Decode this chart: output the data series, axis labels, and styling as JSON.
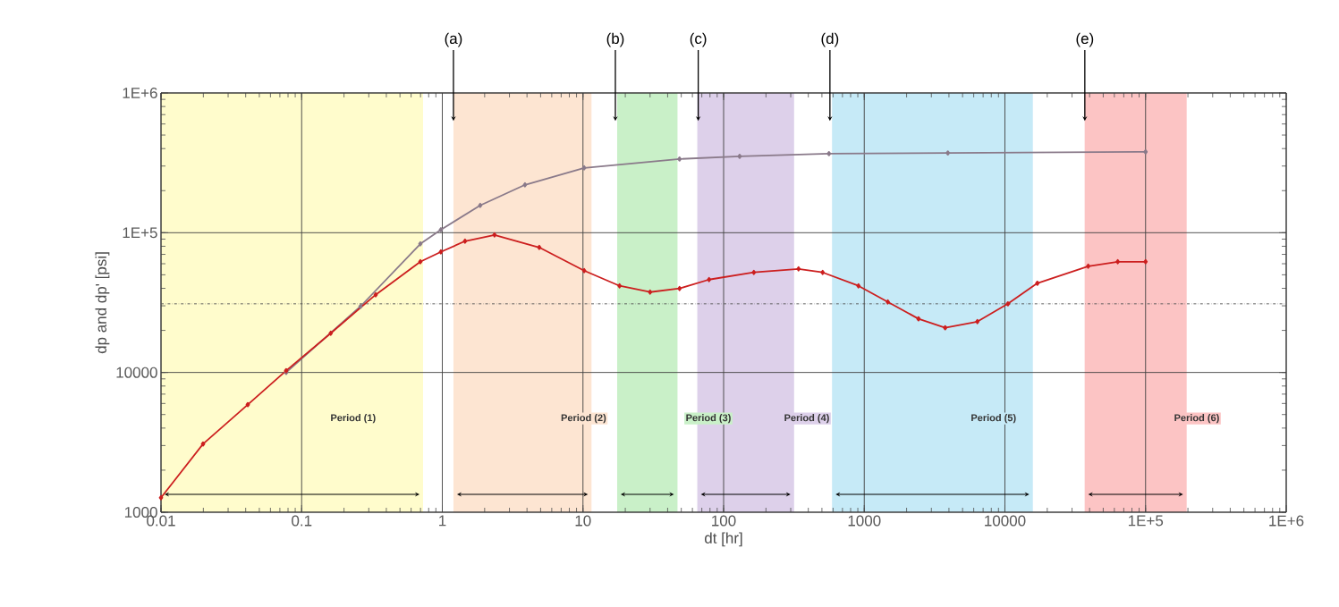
{
  "chart_data": {
    "type": "line",
    "xlabel": "dt [hr]",
    "ylabel": "dp and dp' [psi]",
    "log": "xy",
    "grid": true,
    "marker": "diamond",
    "line_style": "solid",
    "xlim": [
      0.01,
      1000000
    ],
    "ylim": [
      1000,
      1000000
    ],
    "xticks": [
      0.01,
      0.1,
      1,
      10,
      100,
      1000,
      10000,
      {
        "value": 100000,
        "label": "1E+5"
      },
      {
        "value": 1000000,
        "label": "1E+6"
      }
    ],
    "yticks": [
      1000,
      10000,
      {
        "value": 100000,
        "label": "1E+5"
      },
      {
        "value": 1000000,
        "label": "1E+6"
      }
    ],
    "series": [
      {
        "color": "#8a7a8a",
        "x": [
          0.0776,
          0.262,
          0.698,
          0.977,
          1.86,
          3.87,
          10.2,
          48.6,
          130,
          561,
          3930,
          100000
        ],
        "values": [
          10000,
          29700,
          83200,
          105000,
          157000,
          220000,
          291000,
          337000,
          352000,
          368000,
          372000,
          379000
        ]
      },
      {
        "color": "#cc1f1f",
        "x": [
          0.01,
          0.0199,
          0.0414,
          0.0776,
          0.161,
          0.336,
          0.698,
          0.977,
          1.45,
          2.35,
          4.89,
          10.2,
          18.2,
          30,
          48.6,
          78.8,
          164,
          341,
          506,
          909,
          1470,
          2430,
          3760,
          6370,
          10500,
          17000,
          39100,
          63400,
          100000
        ],
        "values": [
          1270,
          3080,
          5890,
          10300,
          19100,
          36000,
          62000,
          73000,
          87000,
          96400,
          78500,
          53500,
          41700,
          37600,
          39900,
          46200,
          52000,
          55100,
          52000,
          41700,
          32000,
          24200,
          20900,
          23100,
          31000,
          43500,
          57600,
          62000,
          62000
        ]
      }
    ],
    "ref_lines": [
      {
        "axis": "y",
        "value": 31000,
        "color": "#555555",
        "line_style": "dashed"
      }
    ],
    "bands": [
      {
        "axis": "x",
        "from": 0.01,
        "to": 0.73,
        "label": "Period (1)",
        "color": "#fffccc"
      },
      {
        "axis": "x",
        "from": 1.2,
        "to": 11.5,
        "label": "Period (2)",
        "color": "#fde5d2"
      },
      {
        "axis": "x",
        "from": 17.5,
        "to": 47,
        "label": "Period (3)",
        "color": "#c9f0c8"
      },
      {
        "axis": "x",
        "from": 65,
        "to": 317,
        "label": "Period (4)",
        "color": "#ddd0ea"
      },
      {
        "axis": "x",
        "from": 590,
        "to": 15800,
        "label": "Period (5)",
        "color": "#c6eaf7"
      },
      {
        "axis": "x",
        "from": 36900,
        "to": 196000,
        "label": "Period (6)",
        "color": "#fcc4c4"
      }
    ],
    "annotations": [
      {
        "text": "(a)",
        "x": 1.2,
        "y": 630000
      },
      {
        "text": "(b)",
        "x": 17,
        "y": 630000
      },
      {
        "text": "(c)",
        "x": 66,
        "y": 630000
      },
      {
        "text": "(d)",
        "x": 570,
        "y": 630000
      },
      {
        "text": "(e)",
        "x": 37000,
        "y": 630000
      }
    ]
  }
}
